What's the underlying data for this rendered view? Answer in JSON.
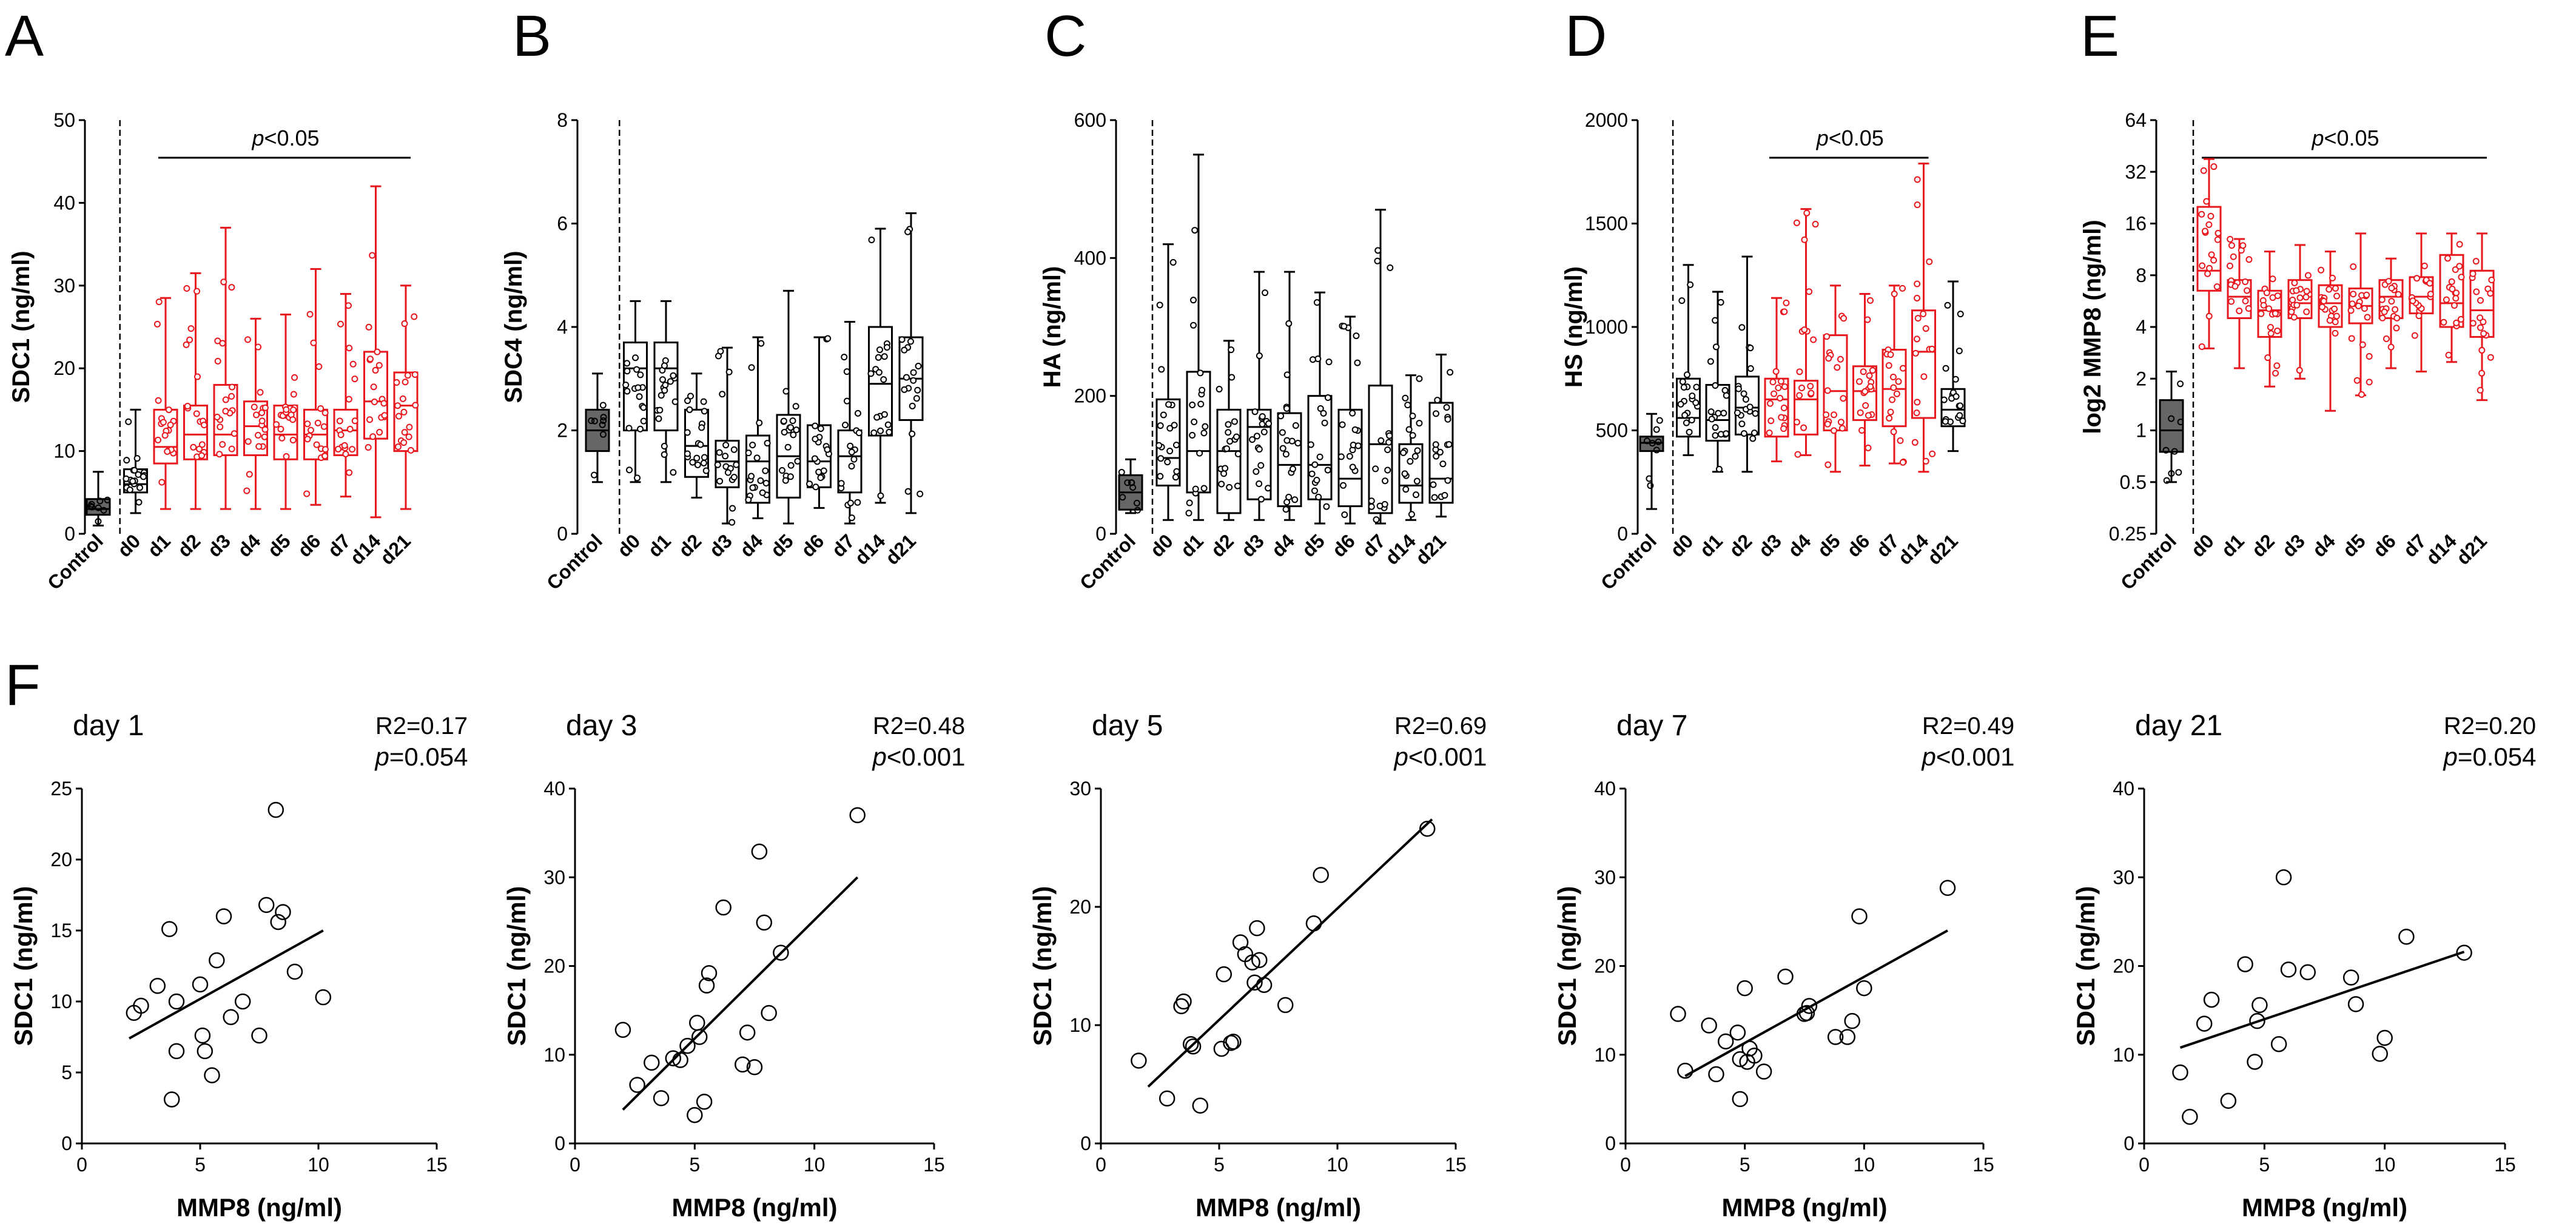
{
  "chart_data": [
    {
      "panel": "A",
      "type": "box",
      "ylabel": "SDC1 (ng/ml)",
      "yscale": "linear",
      "ylim": [
        0,
        50
      ],
      "yticks": [
        0,
        10,
        20,
        30,
        40,
        50
      ],
      "categories": [
        "Control",
        "d0",
        "d1",
        "d2",
        "d3",
        "d4",
        "d5",
        "d6",
        "d7",
        "d14",
        "d21"
      ],
      "highlighted": [
        "d1",
        "d2",
        "d3",
        "d4",
        "d5",
        "d6",
        "d7",
        "d14",
        "d21"
      ],
      "significance": {
        "text": "p<0.05",
        "from": "d1",
        "to": "d21"
      },
      "stats": [
        [
          1,
          2.3,
          3,
          4.2,
          7.5
        ],
        [
          2.5,
          5,
          6,
          7.8,
          15
        ],
        [
          3,
          8.5,
          10.5,
          15,
          28.5
        ],
        [
          3,
          9,
          12,
          15.5,
          31.5
        ],
        [
          3,
          9.5,
          12,
          18,
          37
        ],
        [
          3,
          9.5,
          13,
          16,
          26
        ],
        [
          3,
          9,
          12,
          15.5,
          26.5
        ],
        [
          3.5,
          9,
          12,
          15,
          32
        ],
        [
          4.5,
          9.5,
          12.5,
          15,
          29
        ],
        [
          2,
          11.5,
          16,
          22,
          42
        ],
        [
          3,
          10,
          15.5,
          19.5,
          30
        ]
      ]
    },
    {
      "panel": "B",
      "type": "box",
      "ylabel": "SDC4 (ng/ml)",
      "yscale": "linear",
      "ylim": [
        0,
        8
      ],
      "yticks": [
        0,
        2,
        4,
        6,
        8
      ],
      "categories": [
        "Control",
        "d0",
        "d1",
        "d2",
        "d3",
        "d4",
        "d5",
        "d6",
        "d7",
        "d14",
        "d21"
      ],
      "highlighted": [],
      "significance": null,
      "stats": [
        [
          1,
          1.6,
          2,
          2.4,
          3.1
        ],
        [
          1,
          2,
          3.2,
          3.7,
          4.5
        ],
        [
          1,
          2,
          3.2,
          3.7,
          4.5
        ],
        [
          0.7,
          1.1,
          1.7,
          2.4,
          3.1
        ],
        [
          0.2,
          0.9,
          1.4,
          1.8,
          3.6
        ],
        [
          0.3,
          0.6,
          1.4,
          1.9,
          3.8
        ],
        [
          0.2,
          0.7,
          1.5,
          2.3,
          4.7
        ],
        [
          0.5,
          0.9,
          1.4,
          2.1,
          3.8
        ],
        [
          0.2,
          0.8,
          1.5,
          2,
          4.1
        ],
        [
          0.6,
          1.9,
          2.9,
          4,
          5.9
        ],
        [
          0.4,
          2.2,
          3,
          3.8,
          6.2
        ]
      ]
    },
    {
      "panel": "C",
      "type": "box",
      "ylabel": "HA (ng/ml)",
      "yscale": "linear",
      "ylim": [
        0,
        600
      ],
      "yticks": [
        0,
        200,
        400,
        600
      ],
      "categories": [
        "Control",
        "d0",
        "d1",
        "d2",
        "d3",
        "d4",
        "d5",
        "d6",
        "d7",
        "d14",
        "d21"
      ],
      "highlighted": [],
      "significance": null,
      "stats": [
        [
          30,
          35,
          60,
          85,
          108
        ],
        [
          20,
          70,
          110,
          195,
          420
        ],
        [
          20,
          60,
          120,
          235,
          550
        ],
        [
          20,
          30,
          120,
          180,
          280
        ],
        [
          20,
          50,
          155,
          180,
          380
        ],
        [
          20,
          40,
          100,
          175,
          380
        ],
        [
          15,
          50,
          100,
          200,
          350
        ],
        [
          15,
          40,
          80,
          180,
          315
        ],
        [
          15,
          30,
          130,
          215,
          470
        ],
        [
          20,
          45,
          70,
          130,
          230
        ],
        [
          25,
          45,
          80,
          190,
          260
        ]
      ]
    },
    {
      "panel": "D",
      "type": "box",
      "ylabel": "HS (ng/ml)",
      "yscale": "linear",
      "ylim": [
        0,
        2000
      ],
      "yticks": [
        0,
        500,
        1000,
        1500,
        2000
      ],
      "categories": [
        "Control",
        "d0",
        "d1",
        "d2",
        "d3",
        "d4",
        "d5",
        "d6",
        "d7",
        "d14",
        "d21"
      ],
      "highlighted": [
        "d3",
        "d4",
        "d5",
        "d6",
        "d7",
        "d14"
      ],
      "significance": {
        "text": "p<0.05",
        "from": "d3",
        "to": "d14"
      },
      "stats": [
        [
          120,
          400,
          440,
          470,
          580
        ],
        [
          380,
          470,
          560,
          750,
          1300
        ],
        [
          300,
          450,
          550,
          720,
          1170
        ],
        [
          300,
          480,
          610,
          760,
          1340
        ],
        [
          350,
          470,
          650,
          750,
          1140
        ],
        [
          380,
          480,
          650,
          740,
          1570
        ],
        [
          300,
          500,
          690,
          960,
          1200
        ],
        [
          330,
          550,
          690,
          810,
          1160
        ],
        [
          340,
          520,
          700,
          890,
          1200
        ],
        [
          300,
          560,
          880,
          1080,
          1790
        ],
        [
          400,
          520,
          600,
          700,
          1220
        ]
      ]
    },
    {
      "panel": "E",
      "type": "box",
      "ylabel": "log2 MMP8 (ng/ml)",
      "yscale": "log2",
      "ylim": [
        0.25,
        64
      ],
      "yticks": [
        0.25,
        0.5,
        1,
        2,
        4,
        8,
        16,
        32,
        64
      ],
      "categories": [
        "Control",
        "d0",
        "d1",
        "d2",
        "d3",
        "d4",
        "d5",
        "d6",
        "d7",
        "d14",
        "d21"
      ],
      "highlighted": [
        "d0",
        "d1",
        "d2",
        "d3",
        "d4",
        "d5",
        "d6",
        "d7",
        "d14",
        "d21"
      ],
      "significance": {
        "text": "p<0.05",
        "from": "d0",
        "to": "d21"
      },
      "stats": [
        [
          0.5,
          0.75,
          1,
          1.5,
          2.2
        ],
        [
          3,
          6.5,
          8.5,
          20,
          38
        ],
        [
          2.3,
          4.5,
          6,
          7.5,
          13
        ],
        [
          1.8,
          3.5,
          5,
          6.5,
          11
        ],
        [
          2,
          4.5,
          5.5,
          7.5,
          12
        ],
        [
          1.3,
          4,
          5.5,
          7,
          11
        ],
        [
          1.6,
          4.2,
          5.3,
          6.7,
          14
        ],
        [
          2.3,
          4.5,
          6,
          7.5,
          10
        ],
        [
          2.2,
          4.8,
          6,
          7.8,
          14
        ],
        [
          2.5,
          4,
          5.5,
          10.5,
          14
        ],
        [
          1.5,
          3.5,
          5,
          8.5,
          14
        ]
      ]
    },
    {
      "panel": "F",
      "subpanel": "day 1",
      "type": "scatter",
      "xlabel": "MMP8 (ng/ml)",
      "ylabel": "SDC1 (ng/ml)",
      "xlim": [
        0,
        15
      ],
      "xticks": [
        0,
        5,
        10,
        15
      ],
      "ylim": [
        0,
        25
      ],
      "yticks": [
        0,
        5,
        10,
        15,
        20,
        25
      ],
      "r2": "R2=0.17",
      "p": "p=0.054",
      "points": [
        [
          2.2,
          9.2
        ],
        [
          2.5,
          9.7
        ],
        [
          3.2,
          11.1
        ],
        [
          3.7,
          15.1
        ],
        [
          3.8,
          3.1
        ],
        [
          4,
          6.5
        ],
        [
          4,
          10
        ],
        [
          5,
          11.2
        ],
        [
          5.2,
          6.5
        ],
        [
          5.1,
          7.6
        ],
        [
          5.5,
          4.8
        ],
        [
          5.7,
          12.9
        ],
        [
          6,
          16
        ],
        [
          6.3,
          8.9
        ],
        [
          6.8,
          10
        ],
        [
          7.5,
          7.6
        ],
        [
          7.8,
          16.8
        ],
        [
          8.2,
          23.5
        ],
        [
          8.3,
          15.6
        ],
        [
          8.5,
          16.3
        ],
        [
          9,
          12.1
        ],
        [
          10.2,
          10.3
        ]
      ],
      "fit": [
        2,
        10.2,
        7.4,
        15
      ]
    },
    {
      "panel": "F",
      "subpanel": "day 3",
      "type": "scatter",
      "xlabel": "MMP8 (ng/ml)",
      "ylabel": "SDC1 (ng/ml)",
      "xlim": [
        0,
        15
      ],
      "xticks": [
        0,
        5,
        10,
        15
      ],
      "ylim": [
        0,
        40
      ],
      "yticks": [
        0,
        10,
        20,
        30,
        40
      ],
      "r2": "R2=0.48",
      "p": "p<0.001",
      "points": [
        [
          2,
          12.8
        ],
        [
          2.6,
          6.6
        ],
        [
          3.2,
          9.1
        ],
        [
          3.6,
          5.1
        ],
        [
          4.1,
          9.6
        ],
        [
          4.4,
          9.4
        ],
        [
          4.7,
          11
        ],
        [
          5,
          3.2
        ],
        [
          5.1,
          13.6
        ],
        [
          5.2,
          12
        ],
        [
          5.5,
          17.8
        ],
        [
          5.4,
          4.7
        ],
        [
          5.6,
          19.2
        ],
        [
          6.2,
          26.6
        ],
        [
          7,
          8.9
        ],
        [
          7.2,
          12.5
        ],
        [
          7.5,
          8.6
        ],
        [
          7.7,
          32.9
        ],
        [
          7.9,
          24.9
        ],
        [
          8.1,
          14.7
        ],
        [
          8.6,
          21.5
        ],
        [
          11.8,
          37
        ]
      ],
      "fit": [
        2,
        11.8,
        3.8,
        30
      ]
    },
    {
      "panel": "F",
      "subpanel": "day 5",
      "type": "scatter",
      "xlabel": "MMP8 (ng/ml)",
      "ylabel": "SDC1 (ng/ml)",
      "xlim": [
        0,
        15
      ],
      "xticks": [
        0,
        5,
        10,
        15
      ],
      "ylim": [
        0,
        30
      ],
      "yticks": [
        0,
        10,
        20,
        30
      ],
      "r2": "R2=0.69",
      "p": "p<0.001",
      "points": [
        [
          1.6,
          7
        ],
        [
          2.8,
          3.8
        ],
        [
          3.4,
          11.6
        ],
        [
          3.5,
          12
        ],
        [
          3.8,
          8.4
        ],
        [
          3.9,
          8.2
        ],
        [
          4.2,
          3.2
        ],
        [
          5.1,
          8
        ],
        [
          5.2,
          14.3
        ],
        [
          5.5,
          8.5
        ],
        [
          5.6,
          8.6
        ],
        [
          5.9,
          17
        ],
        [
          6.1,
          16
        ],
        [
          6.4,
          15.3
        ],
        [
          6.6,
          18.2
        ],
        [
          6.5,
          13.6
        ],
        [
          6.7,
          15.5
        ],
        [
          6.9,
          13.4
        ],
        [
          7.8,
          11.7
        ],
        [
          9,
          18.6
        ],
        [
          9.3,
          22.7
        ],
        [
          13.8,
          26.6
        ]
      ],
      "fit": [
        2,
        14,
        4.8,
        27.4
      ]
    },
    {
      "panel": "F",
      "subpanel": "day 7",
      "type": "scatter",
      "xlabel": "MMP8 (ng/ml)",
      "ylabel": "SDC1 (ng/ml)",
      "xlim": [
        0,
        15
      ],
      "xticks": [
        0,
        5,
        10,
        15
      ],
      "ylim": [
        0,
        40
      ],
      "yticks": [
        0,
        10,
        20,
        30,
        40
      ],
      "r2": "R2=0.49",
      "p": "p<0.001",
      "points": [
        [
          2.2,
          14.6
        ],
        [
          2.5,
          8.2
        ],
        [
          3.5,
          13.3
        ],
        [
          3.8,
          7.8
        ],
        [
          4.2,
          11.5
        ],
        [
          4.7,
          12.5
        ],
        [
          4.8,
          9.5
        ],
        [
          4.8,
          5
        ],
        [
          5,
          17.5
        ],
        [
          5.1,
          9.2
        ],
        [
          5.2,
          10.7
        ],
        [
          5.4,
          9.9
        ],
        [
          5.8,
          8.1
        ],
        [
          6.7,
          18.8
        ],
        [
          7.5,
          14.6
        ],
        [
          7.6,
          14.7
        ],
        [
          7.7,
          15.5
        ],
        [
          8.8,
          12
        ],
        [
          9.3,
          12
        ],
        [
          9.5,
          13.8
        ],
        [
          9.8,
          25.6
        ],
        [
          10,
          17.5
        ],
        [
          13.5,
          28.8
        ]
      ],
      "fit": [
        2.5,
        13.5,
        7.6,
        24
      ]
    },
    {
      "panel": "F",
      "subpanel": "day 21",
      "type": "scatter",
      "xlabel": "MMP8 (ng/ml)",
      "ylabel": "SDC1 (ng/ml)",
      "xlim": [
        0,
        15
      ],
      "xticks": [
        0,
        5,
        10,
        15
      ],
      "ylim": [
        0,
        40
      ],
      "yticks": [
        0,
        10,
        20,
        30,
        40
      ],
      "r2": "R2=0.20",
      "p": "p=0.054",
      "points": [
        [
          1.5,
          8
        ],
        [
          1.9,
          3
        ],
        [
          2.5,
          13.5
        ],
        [
          2.8,
          16.2
        ],
        [
          3.5,
          4.8
        ],
        [
          4.2,
          20.2
        ],
        [
          4.6,
          9.2
        ],
        [
          4.7,
          13.8
        ],
        [
          4.8,
          15.6
        ],
        [
          5.6,
          11.2
        ],
        [
          5.8,
          30
        ],
        [
          6,
          19.6
        ],
        [
          6.8,
          19.3
        ],
        [
          8.6,
          18.7
        ],
        [
          8.8,
          15.7
        ],
        [
          9.8,
          10.1
        ],
        [
          10,
          11.9
        ],
        [
          10.9,
          23.3
        ],
        [
          13.3,
          21.5
        ]
      ],
      "fit": [
        1.5,
        13.3,
        10.8,
        21.6
      ]
    }
  ],
  "colors": {
    "highlight": "#e8171d",
    "normal": "#000000",
    "control_fill": "#666666",
    "background": "#ffffff"
  },
  "panel_letters": [
    "A",
    "B",
    "C",
    "D",
    "E",
    "F"
  ]
}
